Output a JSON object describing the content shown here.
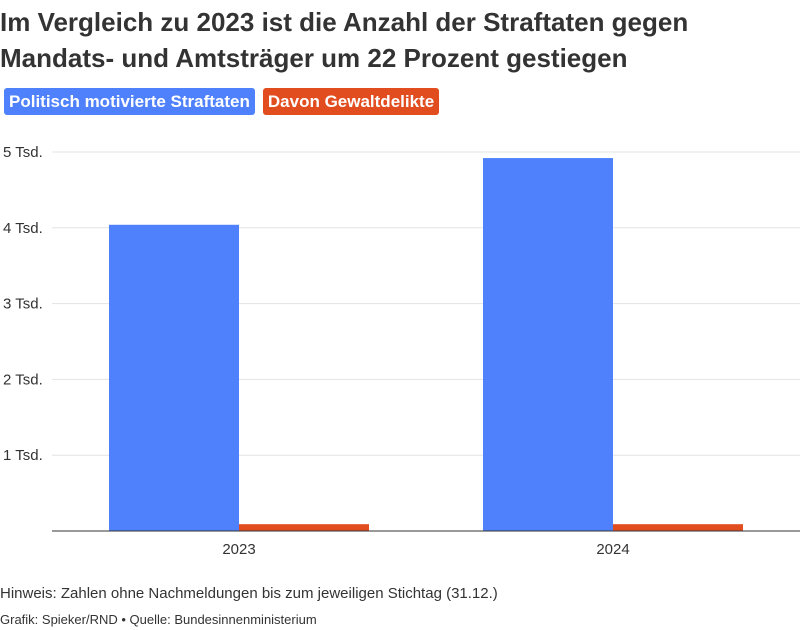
{
  "title": "Im Vergleich zu 2023 ist die Anzahl der Straftaten gegen Mandats- und Amtsträger um 22 Prozent gestiegen",
  "legend": [
    {
      "label": "Politisch motivierte Straftaten",
      "color": "#4f81fd"
    },
    {
      "label": "Davon Gewaltdelikte",
      "color": "#e24d20"
    }
  ],
  "chart_data": {
    "type": "bar",
    "categories": [
      "2023",
      "2024"
    ],
    "series": [
      {
        "name": "Politisch motivierte Straftaten",
        "color": "#4f81fd",
        "values": [
          4040,
          4920
        ]
      },
      {
        "name": "Davon Gewaltdelikte",
        "color": "#e24d20",
        "values": [
          90,
          90
        ]
      }
    ],
    "yticks": [
      {
        "value": 1000,
        "label": "1 Tsd."
      },
      {
        "value": 2000,
        "label": "2 Tsd."
      },
      {
        "value": 3000,
        "label": "3 Tsd."
      },
      {
        "value": 4000,
        "label": "4 Tsd."
      },
      {
        "value": 5000,
        "label": "5 Tsd."
      }
    ],
    "ylim": [
      0,
      5000
    ],
    "grid": true
  },
  "footer": {
    "note": "Hinweis: Zahlen ohne Nachmeldungen bis zum jeweiligen Stichtag (31.12.)",
    "credit": "Grafik: Spieker/RND • Quelle: Bundesinnenministerium"
  }
}
